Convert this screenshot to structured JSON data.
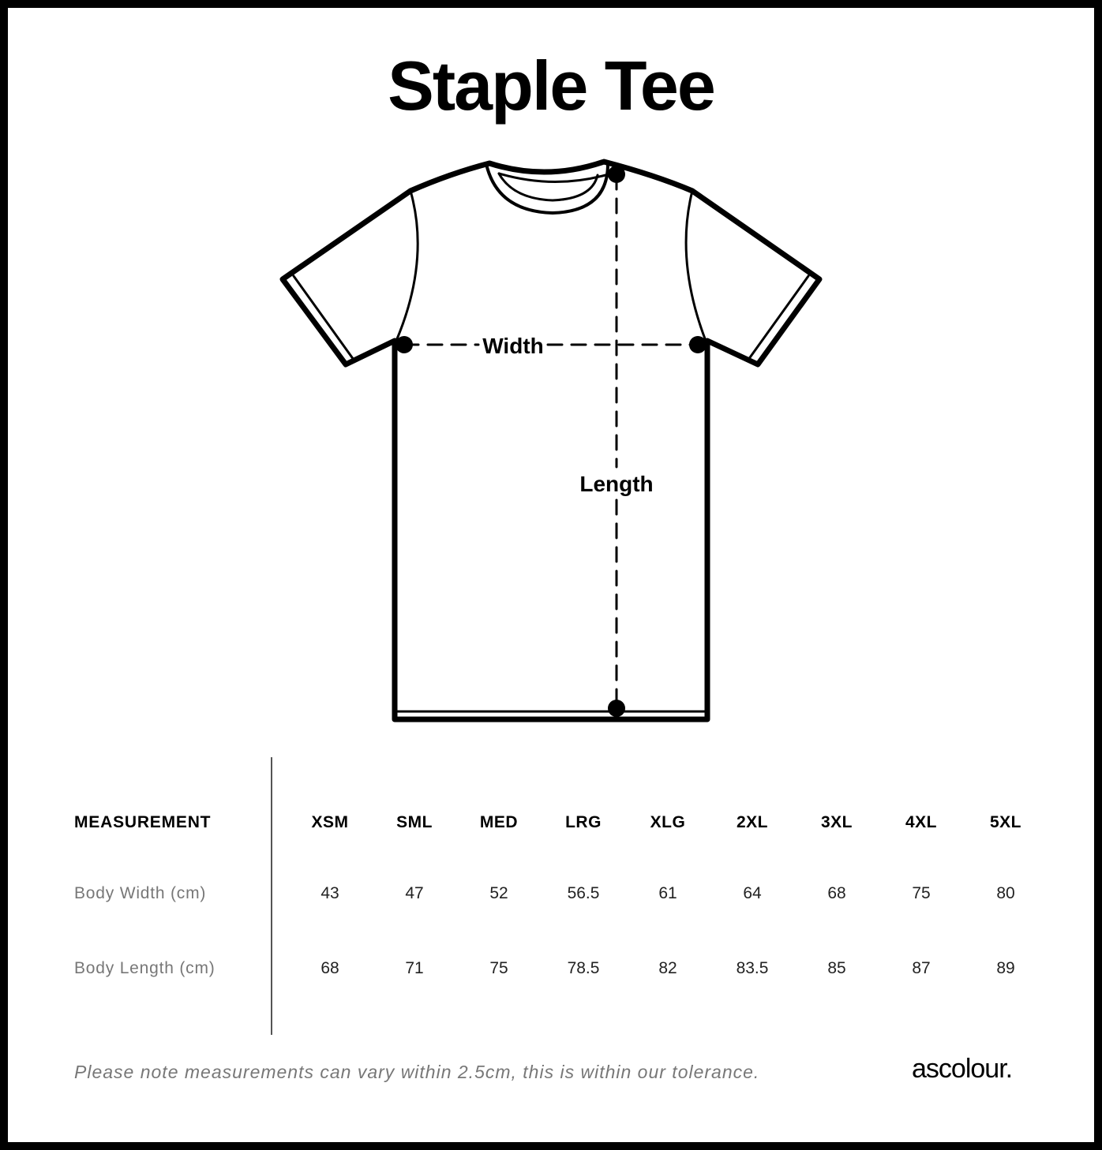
{
  "title": "Staple Tee",
  "diagram": {
    "width_label": "Width",
    "length_label": "Length"
  },
  "table": {
    "header_label": "MEASUREMENT",
    "sizes": [
      "XSM",
      "SML",
      "MED",
      "LRG",
      "XLG",
      "2XL",
      "3XL",
      "4XL",
      "5XL"
    ],
    "rows": [
      {
        "label": "Body Width (cm)",
        "values": [
          "43",
          "47",
          "52",
          "56.5",
          "61",
          "64",
          "68",
          "75",
          "80"
        ]
      },
      {
        "label": "Body Length (cm)",
        "values": [
          "68",
          "71",
          "75",
          "78.5",
          "82",
          "83.5",
          "85",
          "87",
          "89"
        ]
      }
    ]
  },
  "footer": {
    "note": "Please note measurements can vary within 2.5cm, this is within our tolerance.",
    "brand": "ascolour."
  }
}
